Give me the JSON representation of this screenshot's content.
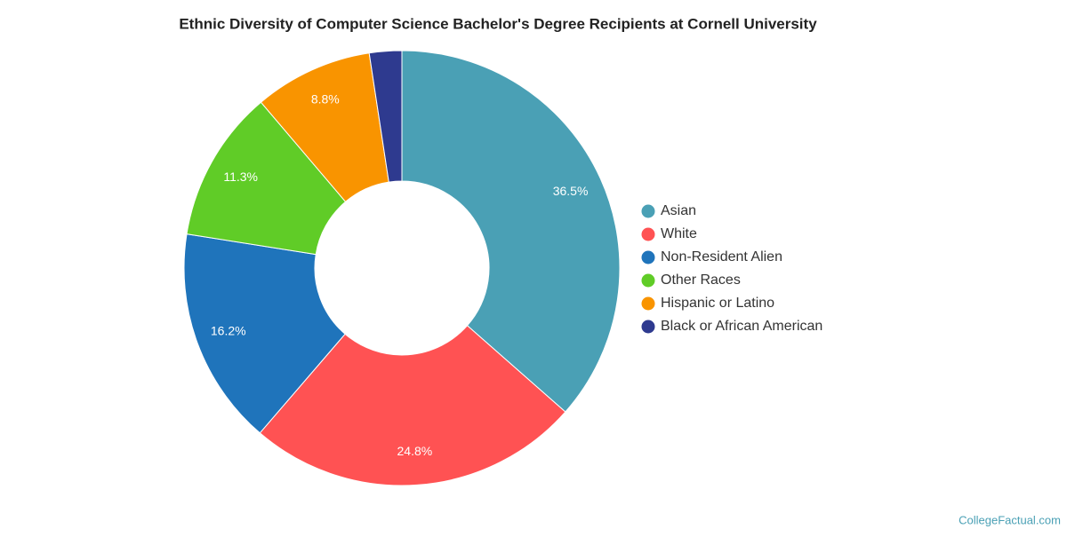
{
  "chart_data": {
    "type": "donut",
    "title": "Ethnic Diversity of Computer Science Bachelor's Degree Recipients at Cornell University",
    "categories": [
      "Asian",
      "White",
      "Non-Resident Alien",
      "Other Races",
      "Hispanic or Latino",
      "Black or African American"
    ],
    "values": [
      36.5,
      24.8,
      16.2,
      11.3,
      8.8,
      2.4
    ],
    "value_labels": [
      "36.5%",
      "24.8%",
      "16.2%",
      "11.3%",
      "8.8%",
      null
    ],
    "colors": [
      "#4aa0b5",
      "#ff5253",
      "#1f74bb",
      "#60cc27",
      "#f99400",
      "#2e3a8f"
    ],
    "legend": "right",
    "credit": "CollegeFactual.com"
  }
}
